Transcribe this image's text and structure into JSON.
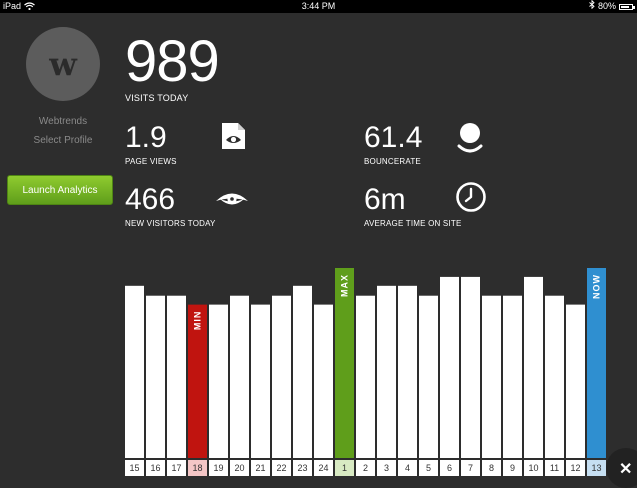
{
  "status_bar": {
    "device": "iPad",
    "time": "3:44 PM",
    "battery": "80%",
    "battery_level": 0.8
  },
  "profile": {
    "avatar_letter": "w",
    "name": "Webtrends",
    "select_label": "Select Profile"
  },
  "launch_button": {
    "label": "Launch Analytics"
  },
  "visits": {
    "value": "989",
    "label": "VISITS TODAY"
  },
  "stats": {
    "page_views": {
      "value": "1.9",
      "label": "PAGE VIEWS",
      "icon": "page-eye-icon"
    },
    "new_visitors": {
      "value": "466",
      "label": "NEW VISITORS TODAY",
      "icon": "eye-icon"
    },
    "bouncerate": {
      "value": "61.4",
      "label": "BOUNCERATE",
      "icon": "bounce-ball-icon"
    },
    "avg_time": {
      "value": "6m",
      "label": "AVERAGE TIME ON SITE",
      "icon": "clock-icon"
    }
  },
  "chart_data": {
    "type": "bar",
    "categories": [
      "15",
      "16",
      "17",
      "18",
      "19",
      "20",
      "21",
      "22",
      "23",
      "24",
      "1",
      "2",
      "3",
      "4",
      "5",
      "6",
      "7",
      "8",
      "9",
      "10",
      "11",
      "12",
      "13"
    ],
    "values": [
      174,
      164,
      164,
      155,
      155,
      164,
      155,
      164,
      174,
      155,
      192,
      164,
      174,
      174,
      164,
      183,
      183,
      164,
      164,
      183,
      164,
      155,
      192
    ],
    "ylim": [
      0,
      192
    ],
    "highlight": {
      "min_index": 3,
      "max_index": 10,
      "now_index": 22
    },
    "highlight_labels": {
      "min": "MIN",
      "max": "MAX",
      "now": "NOW"
    },
    "colors": {
      "bar": "#ffffff",
      "min": "#c0140f",
      "max": "#5f9e1b",
      "now": "#2f8fd0"
    }
  },
  "close_button": {
    "label": "✕"
  }
}
